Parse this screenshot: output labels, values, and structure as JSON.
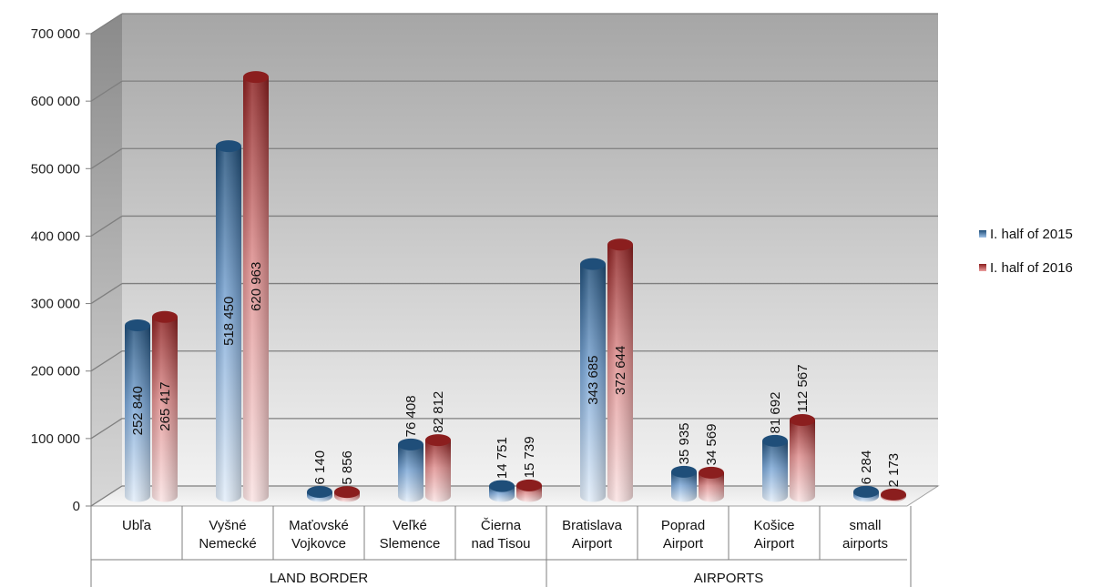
{
  "chart_data": {
    "type": "bar",
    "y_ticks": [
      "0",
      "100 000",
      "200 000",
      "300 000",
      "400 000",
      "500 000",
      "600 000",
      "700 000"
    ],
    "ylim": [
      0,
      700000
    ],
    "grid": true,
    "legend_position": "right",
    "categories": [
      [
        "Ubľa"
      ],
      [
        "Vyšné",
        "Nemecké"
      ],
      [
        "Maťovské",
        "Vojkovce"
      ],
      [
        "Veľké",
        "Slemence"
      ],
      [
        "Čierna",
        "nad Tisou"
      ],
      [
        "Bratislava",
        "Airport"
      ],
      [
        "Poprad",
        "Airport"
      ],
      [
        "Košice",
        "Airport"
      ],
      [
        "small",
        "airports"
      ]
    ],
    "groups": [
      {
        "label": "LAND BORDER",
        "from": 0,
        "to": 4
      },
      {
        "label": "AIRPORTS",
        "from": 5,
        "to": 8
      }
    ],
    "series": [
      {
        "name": "I. half of 2015",
        "color": "#1f4e79",
        "values": [
          252840,
          518450,
          6140,
          76408,
          14751,
          343685,
          35935,
          81692,
          6284
        ],
        "labels": [
          "252 840",
          "518 450",
          "6 140",
          "76 408",
          "14 751",
          "343 685",
          "35 935",
          "81 692",
          "6 284"
        ]
      },
      {
        "name": "I. half of 2016",
        "color": "#8b1e1e",
        "values": [
          265417,
          620963,
          5856,
          82812,
          15739,
          372644,
          34569,
          112567,
          2173
        ],
        "labels": [
          "265 417",
          "620 963",
          "5 856",
          "82 812",
          "15 739",
          "372 644",
          "34 569",
          "112 567",
          "2 173"
        ]
      }
    ]
  }
}
